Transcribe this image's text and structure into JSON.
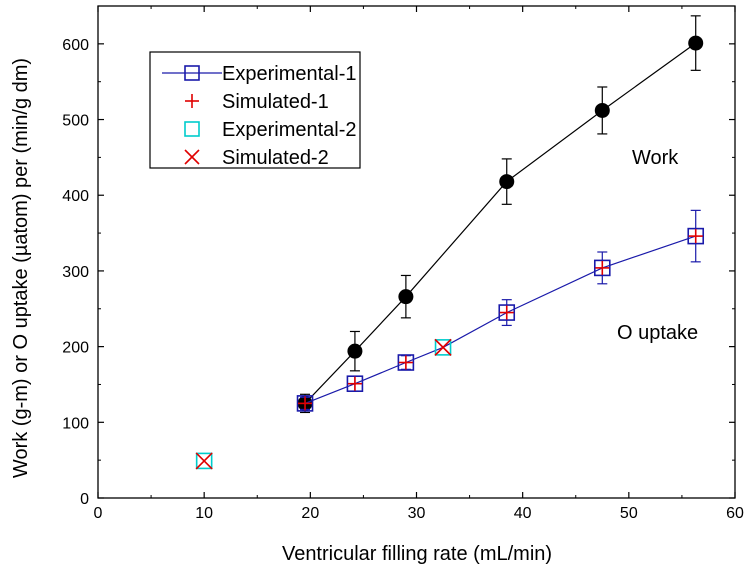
{
  "chart_data": {
    "type": "scatter",
    "xlabel": "Ventricular filling rate (mL/min)",
    "ylabel": "Work (g-m) or O uptake (µatom) per (min/g dm)",
    "xlim": [
      0,
      60
    ],
    "ylim": [
      0,
      650
    ],
    "x_ticks": [
      "0",
      "10",
      "20",
      "30",
      "40",
      "50",
      "60"
    ],
    "y_ticks": [
      "0",
      "100",
      "200",
      "300",
      "400",
      "500",
      "600"
    ],
    "grid": false,
    "legend_position": "top-left",
    "annotations": [
      "Work",
      "O uptake"
    ],
    "series": [
      {
        "key": "work",
        "marker": "filled-circle",
        "line": true,
        "color": "#000000",
        "points": [
          {
            "x": 19.5,
            "y": 125,
            "err": 12
          },
          {
            "x": 24.2,
            "y": 194,
            "err": 26
          },
          {
            "x": 29.0,
            "y": 266,
            "err": 28
          },
          {
            "x": 38.5,
            "y": 418,
            "err": 30
          },
          {
            "x": 47.5,
            "y": 512,
            "err": 31
          },
          {
            "x": 56.3,
            "y": 601,
            "err": 36
          }
        ]
      },
      {
        "name": "Experimental-1",
        "marker": "open-square",
        "line": true,
        "color": "#1a1aaa",
        "points": [
          {
            "x": 19.5,
            "y": 125,
            "err": 8
          },
          {
            "x": 24.2,
            "y": 151,
            "err": 10
          },
          {
            "x": 29.0,
            "y": 179,
            "err": 9
          },
          {
            "x": 38.5,
            "y": 245,
            "err": 17
          },
          {
            "x": 47.5,
            "y": 304,
            "err": 21
          },
          {
            "x": 56.3,
            "y": 346,
            "err": 34
          }
        ],
        "connect_via": [
          {
            "x": 32.5,
            "y": 199
          }
        ]
      },
      {
        "name": "Simulated-1",
        "marker": "plus",
        "line": false,
        "color": "#e00000",
        "points": [
          {
            "x": 19.5,
            "y": 125
          },
          {
            "x": 24.2,
            "y": 151
          },
          {
            "x": 29.0,
            "y": 179
          },
          {
            "x": 38.5,
            "y": 245
          },
          {
            "x": 47.5,
            "y": 304
          },
          {
            "x": 56.3,
            "y": 346
          }
        ]
      },
      {
        "name": "Experimental-2",
        "marker": "open-square",
        "line": false,
        "color": "#00cccc",
        "points": [
          {
            "x": 10.0,
            "y": 49
          },
          {
            "x": 32.5,
            "y": 199
          }
        ]
      },
      {
        "name": "Simulated-2",
        "marker": "x-cross",
        "line": false,
        "color": "#e00000",
        "points": [
          {
            "x": 10.0,
            "y": 49
          },
          {
            "x": 32.5,
            "y": 199
          }
        ]
      }
    ]
  }
}
